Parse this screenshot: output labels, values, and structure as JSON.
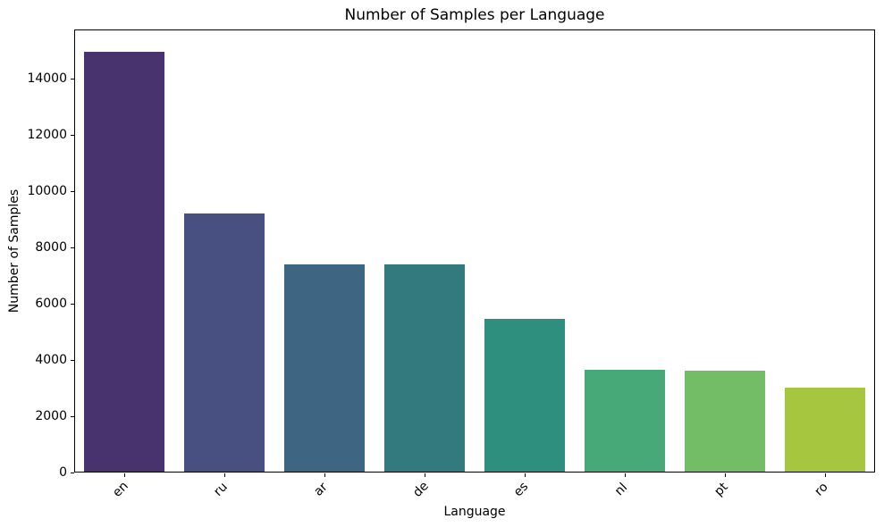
{
  "chart_data": {
    "type": "bar",
    "title": "Number of Samples per Language",
    "xlabel": "Language",
    "ylabel": "Number of Samples",
    "categories": [
      "en",
      "ru",
      "ar",
      "de",
      "es",
      "nl",
      "pt",
      "ro"
    ],
    "values": [
      15000,
      9200,
      7400,
      7390,
      5450,
      3620,
      3590,
      3000
    ],
    "bar_colors": [
      "#48336E",
      "#475080",
      "#3E6682",
      "#337A7E",
      "#2E8F7F",
      "#47A878",
      "#73BD66",
      "#A6C640"
    ],
    "ylim": [
      0,
      15750
    ],
    "yticks": [
      0,
      2000,
      4000,
      6000,
      8000,
      10000,
      12000,
      14000
    ],
    "ytick_labels": [
      "0",
      "2000",
      "4000",
      "6000",
      "8000",
      "10000",
      "12000",
      "14000"
    ],
    "x_tick_rotation": 45,
    "grid": false,
    "legend": false,
    "background": "#ffffff",
    "axis_color": "#000000",
    "text_color": "#000000"
  }
}
